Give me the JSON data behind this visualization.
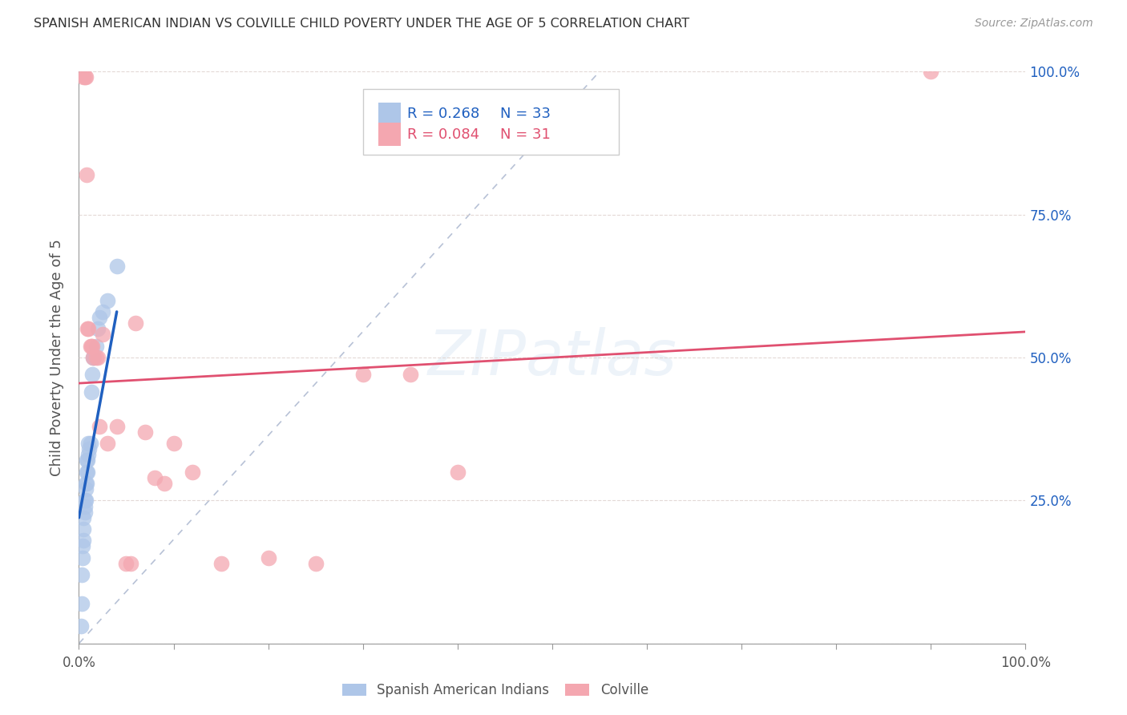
{
  "title": "SPANISH AMERICAN INDIAN VS COLVILLE CHILD POVERTY UNDER THE AGE OF 5 CORRELATION CHART",
  "source": "Source: ZipAtlas.com",
  "ylabel": "Child Poverty Under the Age of 5",
  "xlim": [
    0,
    1
  ],
  "ylim": [
    0,
    1
  ],
  "legend_blue_label": "Spanish American Indians",
  "legend_pink_label": "Colville",
  "legend_blue_R": "R = 0.268",
  "legend_blue_N": "N = 33",
  "legend_pink_R": "R = 0.084",
  "legend_pink_N": "N = 31",
  "blue_fill": "#aec6e8",
  "pink_fill": "#f4a7b0",
  "blue_line_color": "#2060c0",
  "pink_line_color": "#e05070",
  "dashed_line_color": "#8899bb",
  "watermark": "ZIPatlas",
  "blue_scatter_x": [
    0.002,
    0.003,
    0.003,
    0.004,
    0.004,
    0.005,
    0.005,
    0.005,
    0.006,
    0.006,
    0.006,
    0.007,
    0.007,
    0.007,
    0.008,
    0.008,
    0.008,
    0.009,
    0.009,
    0.01,
    0.01,
    0.011,
    0.012,
    0.013,
    0.014,
    0.015,
    0.016,
    0.018,
    0.02,
    0.022,
    0.025,
    0.03,
    0.04
  ],
  "blue_scatter_y": [
    0.03,
    0.07,
    0.12,
    0.15,
    0.17,
    0.18,
    0.2,
    0.22,
    0.23,
    0.24,
    0.25,
    0.25,
    0.27,
    0.28,
    0.28,
    0.3,
    0.32,
    0.3,
    0.32,
    0.33,
    0.35,
    0.34,
    0.35,
    0.44,
    0.47,
    0.5,
    0.5,
    0.52,
    0.55,
    0.57,
    0.58,
    0.6,
    0.66
  ],
  "pink_scatter_x": [
    0.005,
    0.006,
    0.007,
    0.008,
    0.009,
    0.01,
    0.012,
    0.013,
    0.014,
    0.015,
    0.018,
    0.02,
    0.022,
    0.025,
    0.03,
    0.04,
    0.05,
    0.055,
    0.06,
    0.07,
    0.08,
    0.09,
    0.1,
    0.12,
    0.15,
    0.2,
    0.25,
    0.3,
    0.35,
    0.4,
    0.9
  ],
  "pink_scatter_y": [
    0.99,
    0.99,
    0.99,
    0.82,
    0.55,
    0.55,
    0.52,
    0.52,
    0.52,
    0.5,
    0.5,
    0.5,
    0.38,
    0.54,
    0.35,
    0.38,
    0.14,
    0.14,
    0.56,
    0.37,
    0.29,
    0.28,
    0.35,
    0.3,
    0.14,
    0.15,
    0.14,
    0.47,
    0.47,
    0.3,
    1.0
  ],
  "blue_regline_x": [
    0.0,
    0.04
  ],
  "blue_regline_y": [
    0.22,
    0.58
  ],
  "pink_regline_x": [
    0.0,
    1.0
  ],
  "pink_regline_y": [
    0.455,
    0.545
  ],
  "dashed_line_x": [
    0.0,
    0.55
  ],
  "dashed_line_y": [
    0.0,
    1.0
  ]
}
